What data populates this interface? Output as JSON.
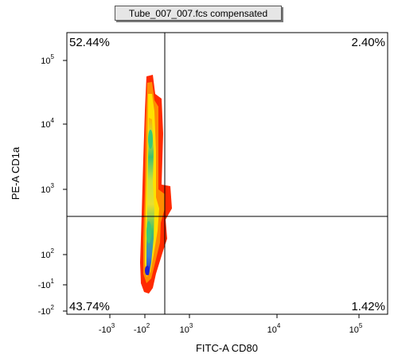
{
  "chart_data": {
    "type": "scatter",
    "plot_kind": "flow-cytometry density plot",
    "title": "Tube_007_007.fcs compensated",
    "xlabel": "FITC-A CD80",
    "ylabel": "PE-A CD1a",
    "x_scale": "biexponential",
    "y_scale": "biexponential",
    "x_ticks": [
      {
        "label": "-10",
        "exp": "3",
        "value": -1000
      },
      {
        "label": "-10",
        "exp": "2",
        "value": -100
      },
      {
        "label": "10",
        "exp": "3",
        "value": 1000
      },
      {
        "label": "10",
        "exp": "4",
        "value": 10000
      },
      {
        "label": "10",
        "exp": "5",
        "value": 100000
      }
    ],
    "y_ticks": [
      {
        "label": "10",
        "exp": "5",
        "value": 100000
      },
      {
        "label": "10",
        "exp": "4",
        "value": 10000
      },
      {
        "label": "10",
        "exp": "3",
        "value": 1000
      },
      {
        "label": "10",
        "exp": "2",
        "value": 100
      },
      {
        "label": "-10",
        "exp": "1",
        "value": -10
      },
      {
        "label": "-10",
        "exp": "2",
        "value": -100
      }
    ],
    "quadrants": {
      "upper_left": "52.44%",
      "upper_right": "2.40%",
      "lower_left": "43.74%",
      "lower_right": "1.42%"
    },
    "grid": false,
    "legend": "none",
    "density_colors": [
      "#ff2a00",
      "#ff8c00",
      "#ffe000",
      "#a8e03c",
      "#3cc878",
      "#3c78dc",
      "#2020d0"
    ]
  }
}
